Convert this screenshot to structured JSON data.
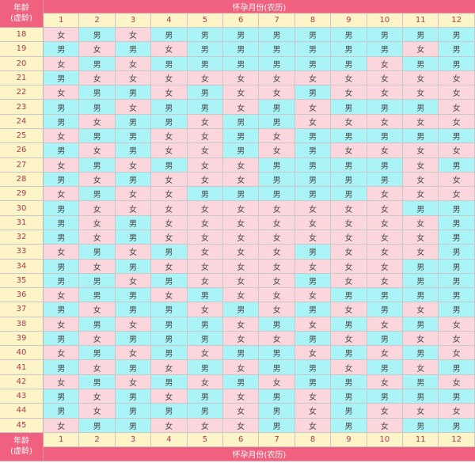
{
  "header": {
    "corner_line1": "年龄",
    "corner_line2": "(虚龄)",
    "band_label": "怀孕月份(农历)"
  },
  "months": [
    "1",
    "2",
    "3",
    "4",
    "5",
    "6",
    "7",
    "8",
    "9",
    "10",
    "11",
    "12"
  ],
  "rows": [
    {
      "age": "18",
      "cells": [
        "女",
        "男",
        "女",
        "男",
        "男",
        "男",
        "男",
        "男",
        "男",
        "男",
        "男",
        "男"
      ]
    },
    {
      "age": "19",
      "cells": [
        "男",
        "女",
        "男",
        "女",
        "男",
        "男",
        "男",
        "男",
        "男",
        "男",
        "女",
        "男"
      ]
    },
    {
      "age": "20",
      "cells": [
        "女",
        "男",
        "女",
        "男",
        "男",
        "男",
        "男",
        "男",
        "男",
        "女",
        "男",
        "男"
      ]
    },
    {
      "age": "21",
      "cells": [
        "男",
        "女",
        "女",
        "女",
        "女",
        "女",
        "女",
        "女",
        "女",
        "女",
        "女",
        "女"
      ]
    },
    {
      "age": "22",
      "cells": [
        "女",
        "男",
        "男",
        "女",
        "男",
        "女",
        "女",
        "男",
        "女",
        "女",
        "女",
        "女"
      ]
    },
    {
      "age": "23",
      "cells": [
        "男",
        "男",
        "女",
        "男",
        "男",
        "女",
        "男",
        "女",
        "男",
        "男",
        "男",
        "女"
      ]
    },
    {
      "age": "24",
      "cells": [
        "男",
        "女",
        "男",
        "男",
        "女",
        "男",
        "男",
        "女",
        "女",
        "女",
        "女",
        "女"
      ]
    },
    {
      "age": "25",
      "cells": [
        "女",
        "男",
        "男",
        "女",
        "女",
        "男",
        "女",
        "男",
        "男",
        "男",
        "男",
        "男"
      ]
    },
    {
      "age": "26",
      "cells": [
        "男",
        "女",
        "男",
        "女",
        "女",
        "男",
        "女",
        "男",
        "女",
        "女",
        "女",
        "女"
      ]
    },
    {
      "age": "27",
      "cells": [
        "女",
        "男",
        "女",
        "男",
        "女",
        "女",
        "男",
        "男",
        "男",
        "男",
        "女",
        "男"
      ]
    },
    {
      "age": "28",
      "cells": [
        "男",
        "女",
        "男",
        "女",
        "女",
        "女",
        "男",
        "男",
        "男",
        "男",
        "女",
        "女"
      ]
    },
    {
      "age": "29",
      "cells": [
        "女",
        "男",
        "女",
        "女",
        "男",
        "男",
        "男",
        "男",
        "男",
        "女",
        "女",
        "女"
      ]
    },
    {
      "age": "30",
      "cells": [
        "男",
        "女",
        "女",
        "女",
        "女",
        "女",
        "女",
        "女",
        "女",
        "女",
        "男",
        "男"
      ]
    },
    {
      "age": "31",
      "cells": [
        "男",
        "女",
        "男",
        "女",
        "女",
        "女",
        "女",
        "女",
        "女",
        "女",
        "女",
        "男"
      ]
    },
    {
      "age": "32",
      "cells": [
        "男",
        "女",
        "男",
        "女",
        "女",
        "女",
        "女",
        "女",
        "女",
        "女",
        "女",
        "男"
      ]
    },
    {
      "age": "33",
      "cells": [
        "女",
        "男",
        "女",
        "男",
        "女",
        "女",
        "女",
        "男",
        "女",
        "女",
        "女",
        "男"
      ]
    },
    {
      "age": "34",
      "cells": [
        "男",
        "女",
        "男",
        "女",
        "女",
        "女",
        "女",
        "女",
        "女",
        "女",
        "男",
        "男"
      ]
    },
    {
      "age": "35",
      "cells": [
        "男",
        "男",
        "女",
        "男",
        "女",
        "女",
        "女",
        "男",
        "女",
        "女",
        "男",
        "男"
      ]
    },
    {
      "age": "36",
      "cells": [
        "女",
        "男",
        "男",
        "女",
        "男",
        "女",
        "女",
        "女",
        "男",
        "男",
        "男",
        "男"
      ]
    },
    {
      "age": "37",
      "cells": [
        "男",
        "女",
        "男",
        "男",
        "女",
        "男",
        "女",
        "男",
        "女",
        "男",
        "女",
        "男"
      ]
    },
    {
      "age": "38",
      "cells": [
        "女",
        "男",
        "女",
        "男",
        "男",
        "女",
        "男",
        "女",
        "男",
        "女",
        "男",
        "女"
      ]
    },
    {
      "age": "39",
      "cells": [
        "男",
        "女",
        "男",
        "男",
        "男",
        "女",
        "女",
        "男",
        "女",
        "男",
        "女",
        "女"
      ]
    },
    {
      "age": "40",
      "cells": [
        "女",
        "男",
        "女",
        "男",
        "女",
        "男",
        "男",
        "女",
        "男",
        "女",
        "男",
        "女"
      ]
    },
    {
      "age": "41",
      "cells": [
        "男",
        "女",
        "男",
        "女",
        "男",
        "女",
        "男",
        "男",
        "女",
        "男",
        "女",
        "男"
      ]
    },
    {
      "age": "42",
      "cells": [
        "女",
        "男",
        "女",
        "男",
        "女",
        "男",
        "女",
        "男",
        "男",
        "女",
        "男",
        "女"
      ]
    },
    {
      "age": "43",
      "cells": [
        "男",
        "女",
        "男",
        "女",
        "男",
        "女",
        "男",
        "女",
        "男",
        "男",
        "男",
        "男"
      ]
    },
    {
      "age": "44",
      "cells": [
        "男",
        "女",
        "男",
        "男",
        "男",
        "女",
        "男",
        "女",
        "男",
        "女",
        "女",
        "女"
      ]
    },
    {
      "age": "45",
      "cells": [
        "女",
        "男",
        "男",
        "女",
        "女",
        "女",
        "男",
        "女",
        "男",
        "女",
        "男",
        "男"
      ]
    }
  ],
  "colors": {
    "band": "#f0607f",
    "label_cell": "#fdf5c8",
    "label_text": "#b6384d",
    "boy_cell": "#aaf3f6",
    "girl_cell": "#fcd6dd",
    "boy_value": "男",
    "girl_value": "女"
  }
}
